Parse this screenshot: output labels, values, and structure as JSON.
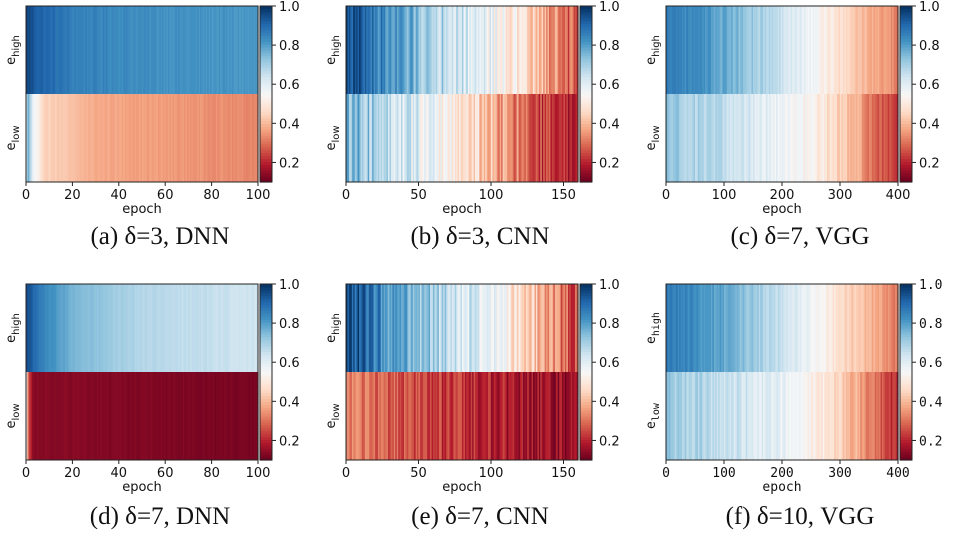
{
  "chart_data": [
    {
      "id": "a",
      "type": "heatmap",
      "caption": "(a) δ=3, DNN",
      "xlabel": "epoch",
      "row_labels": [
        {
          "base": "e",
          "sub": "high"
        },
        {
          "base": "e",
          "sub": "low"
        }
      ],
      "xlim": [
        0,
        100
      ],
      "xticks": [
        0,
        20,
        40,
        60,
        80,
        100
      ],
      "colorbar": {
        "colormap": "RdBu",
        "vmin": 0.1,
        "vmax": 1.0,
        "ticks": [
          0.2,
          0.4,
          0.6,
          0.8,
          1.0
        ],
        "tick_labels": [
          "0.2",
          "0.4",
          "0.6",
          "0.8",
          "1.0"
        ]
      },
      "rows": [
        {
          "profile": [
            [
              0,
              0.97
            ],
            [
              5,
              0.92
            ],
            [
              20,
              0.86
            ],
            [
              50,
              0.83
            ],
            [
              100,
              0.81
            ]
          ],
          "noise": 0.015
        },
        {
          "profile": [
            [
              0,
              0.6
            ],
            [
              1,
              0.78
            ],
            [
              3,
              0.57
            ],
            [
              8,
              0.45
            ],
            [
              30,
              0.38
            ],
            [
              100,
              0.33
            ]
          ],
          "noise": 0.012
        }
      ]
    },
    {
      "id": "b",
      "type": "heatmap",
      "caption": "(b) δ=3, CNN",
      "xlabel": "epoch",
      "row_labels": [
        {
          "base": "e",
          "sub": "high"
        },
        {
          "base": "e",
          "sub": "low"
        }
      ],
      "xlim": [
        0,
        160
      ],
      "xticks": [
        0,
        50,
        100,
        150
      ],
      "colorbar": {
        "colormap": "RdBu",
        "vmin": 0.1,
        "vmax": 1.0,
        "ticks": [
          0.2,
          0.4,
          0.6,
          0.8,
          1.0
        ],
        "tick_labels": [
          "0.2",
          "0.4",
          "0.6",
          "0.8",
          "1.0"
        ]
      },
      "rows": [
        {
          "profile": [
            [
              0,
              0.97
            ],
            [
              30,
              0.82
            ],
            [
              60,
              0.7
            ],
            [
              100,
              0.58
            ],
            [
              120,
              0.48
            ],
            [
              160,
              0.25
            ]
          ],
          "noise": 0.08
        },
        {
          "profile": [
            [
              0,
              0.77
            ],
            [
              30,
              0.67
            ],
            [
              60,
              0.57
            ],
            [
              90,
              0.45
            ],
            [
              120,
              0.3
            ],
            [
              160,
              0.15
            ]
          ],
          "noise": 0.09
        }
      ]
    },
    {
      "id": "c",
      "type": "heatmap",
      "caption": "(c) δ=7, VGG",
      "xlabel": "epoch",
      "row_labels": [
        {
          "base": "e",
          "sub": "high"
        },
        {
          "base": "e",
          "sub": "low"
        }
      ],
      "xlim": [
        0,
        400
      ],
      "xticks": [
        0,
        100,
        200,
        300,
        400
      ],
      "colorbar": {
        "colormap": "RdBu",
        "vmin": 0.1,
        "vmax": 1.0,
        "ticks": [
          0.2,
          0.4,
          0.6,
          0.8,
          1.0
        ],
        "tick_labels": [
          "0.2",
          "0.4",
          "0.6",
          "0.8",
          "1.0"
        ]
      },
      "rows": [
        {
          "profile": [
            [
              0,
              0.88
            ],
            [
              100,
              0.78
            ],
            [
              200,
              0.65
            ],
            [
              260,
              0.55
            ],
            [
              330,
              0.42
            ],
            [
              400,
              0.32
            ]
          ],
          "noise": 0.03
        },
        {
          "profile": [
            [
              0,
              0.72
            ],
            [
              100,
              0.66
            ],
            [
              200,
              0.58
            ],
            [
              260,
              0.52
            ],
            [
              330,
              0.38
            ],
            [
              400,
              0.2
            ]
          ],
          "noise": 0.04
        }
      ]
    },
    {
      "id": "d",
      "type": "heatmap",
      "caption": "(d) δ=7, DNN",
      "xlabel": "epoch",
      "row_labels": [
        {
          "base": "e",
          "sub": "high"
        },
        {
          "base": "e",
          "sub": "low"
        }
      ],
      "xlim": [
        0,
        100
      ],
      "xticks": [
        0,
        20,
        40,
        60,
        80,
        100
      ],
      "colorbar": {
        "colormap": "RdBu",
        "vmin": 0.1,
        "vmax": 1.0,
        "ticks": [
          0.2,
          0.4,
          0.6,
          0.8,
          1.0
        ],
        "tick_labels": [
          "0.2",
          "0.4",
          "0.6",
          "0.8",
          "1.0"
        ]
      },
      "rows": [
        {
          "profile": [
            [
              0,
              0.96
            ],
            [
              6,
              0.86
            ],
            [
              20,
              0.76
            ],
            [
              50,
              0.68
            ],
            [
              100,
              0.64
            ]
          ],
          "noise": 0.01
        },
        {
          "profile": [
            [
              0,
              0.6
            ],
            [
              1,
              0.28
            ],
            [
              3,
              0.14
            ],
            [
              100,
              0.12
            ]
          ],
          "noise": 0.008
        }
      ]
    },
    {
      "id": "e",
      "type": "heatmap",
      "caption": "(e) δ=7, CNN",
      "xlabel": "epoch",
      "row_labels": [
        {
          "base": "e",
          "sub": "high"
        },
        {
          "base": "e",
          "sub": "low"
        }
      ],
      "xlim": [
        0,
        160
      ],
      "xticks": [
        0,
        50,
        100,
        150
      ],
      "colorbar": {
        "colormap": "RdBu",
        "vmin": 0.1,
        "vmax": 1.0,
        "ticks": [
          0.2,
          0.4,
          0.6,
          0.8,
          1.0
        ],
        "tick_labels": [
          "0.2",
          "0.4",
          "0.6",
          "0.8",
          "1.0"
        ]
      },
      "rows": [
        {
          "profile": [
            [
              0,
              0.97
            ],
            [
              30,
              0.82
            ],
            [
              60,
              0.7
            ],
            [
              100,
              0.58
            ],
            [
              120,
              0.48
            ],
            [
              160,
              0.25
            ]
          ],
          "noise": 0.08
        },
        {
          "profile": [
            [
              0,
              0.32
            ],
            [
              40,
              0.26
            ],
            [
              100,
              0.2
            ],
            [
              160,
              0.15
            ]
          ],
          "noise": 0.06
        }
      ]
    },
    {
      "id": "f",
      "type": "heatmap",
      "caption": "(f) δ=10, VGG",
      "xlabel": "epoch",
      "row_labels": [
        {
          "base": "e",
          "sub": "high"
        },
        {
          "base": "e",
          "sub": "low"
        }
      ],
      "xlim": [
        0,
        400
      ],
      "xticks": [
        0,
        100,
        200,
        300,
        400
      ],
      "monospace": true,
      "colorbar": {
        "colormap": "RdBu",
        "vmin": 0.1,
        "vmax": 1.0,
        "ticks": [
          0.2,
          0.4,
          0.6,
          0.8,
          1.0
        ],
        "tick_labels": [
          "0.2",
          "0.4",
          "0.6",
          "0.8",
          "1.0"
        ]
      },
      "rows": [
        {
          "profile": [
            [
              0,
              0.88
            ],
            [
              100,
              0.78
            ],
            [
              200,
              0.65
            ],
            [
              260,
              0.55
            ],
            [
              330,
              0.42
            ],
            [
              400,
              0.32
            ]
          ],
          "noise": 0.03
        },
        {
          "profile": [
            [
              0,
              0.72
            ],
            [
              100,
              0.66
            ],
            [
              200,
              0.58
            ],
            [
              260,
              0.52
            ],
            [
              330,
              0.38
            ],
            [
              400,
              0.2
            ]
          ],
          "noise": 0.04
        }
      ]
    }
  ]
}
